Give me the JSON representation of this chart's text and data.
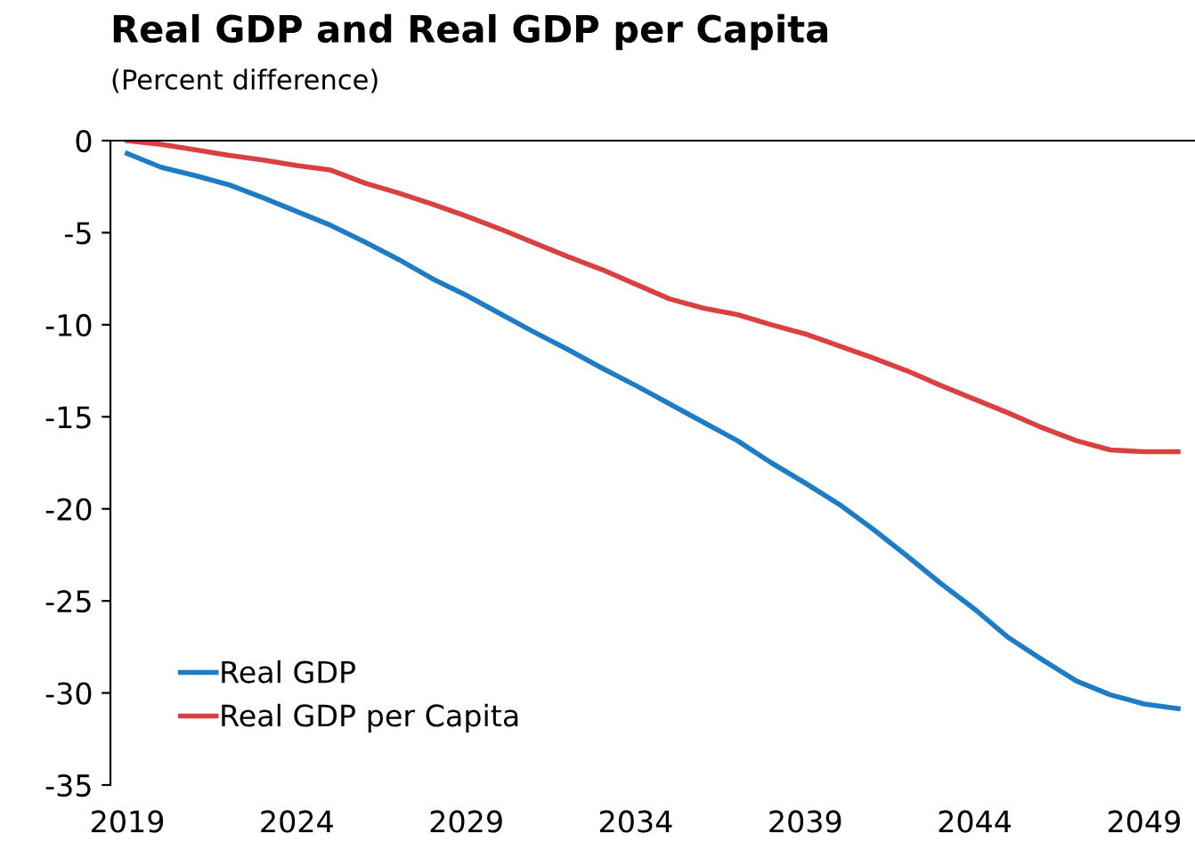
{
  "chart_data": {
    "type": "line",
    "title": "Real GDP and Real GDP per Capita",
    "subtitle": "(Percent difference)",
    "x": [
      2019,
      2020,
      2021,
      2022,
      2023,
      2024,
      2025,
      2026,
      2027,
      2028,
      2029,
      2030,
      2031,
      2032,
      2033,
      2034,
      2035,
      2036,
      2037,
      2038,
      2039,
      2040,
      2041,
      2042,
      2043,
      2044,
      2045,
      2046,
      2047,
      2048,
      2049,
      2050
    ],
    "series": [
      {
        "name": "Real GDP",
        "color": "#1c7cc6",
        "values": [
          -0.7,
          -1.45,
          -1.9,
          -2.4,
          -3.1,
          -3.85,
          -4.6,
          -5.5,
          -6.45,
          -7.5,
          -8.4,
          -9.4,
          -10.4,
          -11.35,
          -12.35,
          -13.3,
          -14.3,
          -15.3,
          -16.3,
          -17.5,
          -18.6,
          -19.75,
          -21.1,
          -22.55,
          -24.05,
          -25.45,
          -27.0,
          -28.2,
          -29.35,
          -30.1,
          -30.6,
          -30.85
        ]
      },
      {
        "name": "Real GDP per Capita",
        "color": "#d9403f",
        "values": [
          0,
          -0.2,
          -0.5,
          -0.8,
          -1.05,
          -1.35,
          -1.6,
          -2.3,
          -2.85,
          -3.45,
          -4.1,
          -4.8,
          -5.55,
          -6.3,
          -7.0,
          -7.8,
          -8.6,
          -9.1,
          -9.45,
          -10.0,
          -10.5,
          -11.15,
          -11.8,
          -12.5,
          -13.3,
          -14.05,
          -14.8,
          -15.6,
          -16.3,
          -16.8,
          -16.9,
          -16.9
        ]
      }
    ],
    "xlim": [
      2018.5,
      2050.5
    ],
    "xticks": [
      2019,
      2024,
      2029,
      2034,
      2039,
      2044,
      2049
    ],
    "ylim": [
      -35,
      0
    ],
    "yticks": [
      0,
      -5,
      -10,
      -15,
      -20,
      -25,
      -30,
      -35
    ],
    "grid": false,
    "legend": "bottom left",
    "line_style": "solid",
    "marker": "none"
  }
}
